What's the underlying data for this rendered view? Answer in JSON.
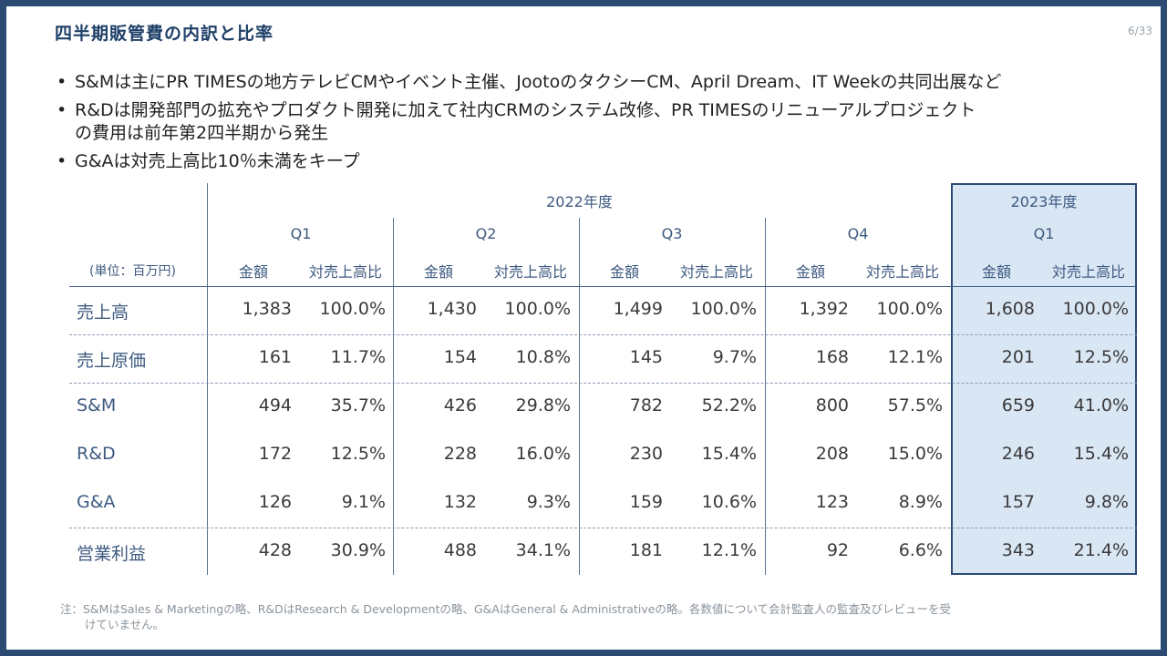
{
  "title": "四半期販管費の内訳と比率",
  "page_number": "6/33",
  "bullets": [
    {
      "lines": [
        "S&Mは主にPR TIMESの地方テレビCMやイベント主催、JootoのタクシーCM、April Dream、IT Weekの共同出展など"
      ]
    },
    {
      "lines": [
        "R&Dは開発部門の拡充やプロダクト開発に加えて社内CRMのシステム改修、PR TIMESのリニューアルプロジェクト",
        "の費用は前年第2四半期から発生"
      ]
    },
    {
      "lines": [
        "G&Aは対売上高比10％未満をキープ"
      ]
    }
  ],
  "bullet_glyph": "•",
  "table": {
    "unit_label": "(単位：百万円)",
    "year_2022": "2022年度",
    "year_2023": "2023年度",
    "quarters": [
      "Q1",
      "Q2",
      "Q3",
      "Q4",
      "Q1"
    ],
    "col_amount": "金額",
    "col_ratio": "対売上高比",
    "rows": [
      {
        "label": "売上高",
        "values": [
          [
            "1,383",
            "100.0%"
          ],
          [
            "1,430",
            "100.0%"
          ],
          [
            "1,499",
            "100.0%"
          ],
          [
            "1,392",
            "100.0%"
          ],
          [
            "1,608",
            "100.0%"
          ]
        ]
      },
      {
        "label": "売上原価",
        "values": [
          [
            "161",
            "11.7%"
          ],
          [
            "154",
            "10.8%"
          ],
          [
            "145",
            "9.7%"
          ],
          [
            "168",
            "12.1%"
          ],
          [
            "201",
            "12.5%"
          ]
        ]
      },
      {
        "label": "S&M",
        "values": [
          [
            "494",
            "35.7%"
          ],
          [
            "426",
            "29.8%"
          ],
          [
            "782",
            "52.2%"
          ],
          [
            "800",
            "57.5%"
          ],
          [
            "659",
            "41.0%"
          ]
        ]
      },
      {
        "label": "R&D",
        "values": [
          [
            "172",
            "12.5%"
          ],
          [
            "228",
            "16.0%"
          ],
          [
            "230",
            "15.4%"
          ],
          [
            "208",
            "15.0%"
          ],
          [
            "246",
            "15.4%"
          ]
        ]
      },
      {
        "label": "G&A",
        "values": [
          [
            "126",
            "9.1%"
          ],
          [
            "132",
            "9.3%"
          ],
          [
            "159",
            "10.6%"
          ],
          [
            "123",
            "8.9%"
          ],
          [
            "157",
            "9.8%"
          ]
        ]
      },
      {
        "label": "営業利益",
        "values": [
          [
            "428",
            "30.9%"
          ],
          [
            "488",
            "34.1%"
          ],
          [
            "181",
            "12.1%"
          ],
          [
            "92",
            "6.6%"
          ],
          [
            "343",
            "21.4%"
          ]
        ]
      }
    ]
  },
  "note": {
    "line1": "注：S&MはSales & Marketingの略、R&DはResearch & Developmentの略、G&AはGeneral & Administrativeの略。各数値について会計監査人の監査及びレビューを受",
    "line2": "けていません。"
  },
  "colors": {
    "frame": "#2b4a74",
    "title": "#1f4068",
    "highlight_bg": "#d9e6f4"
  }
}
